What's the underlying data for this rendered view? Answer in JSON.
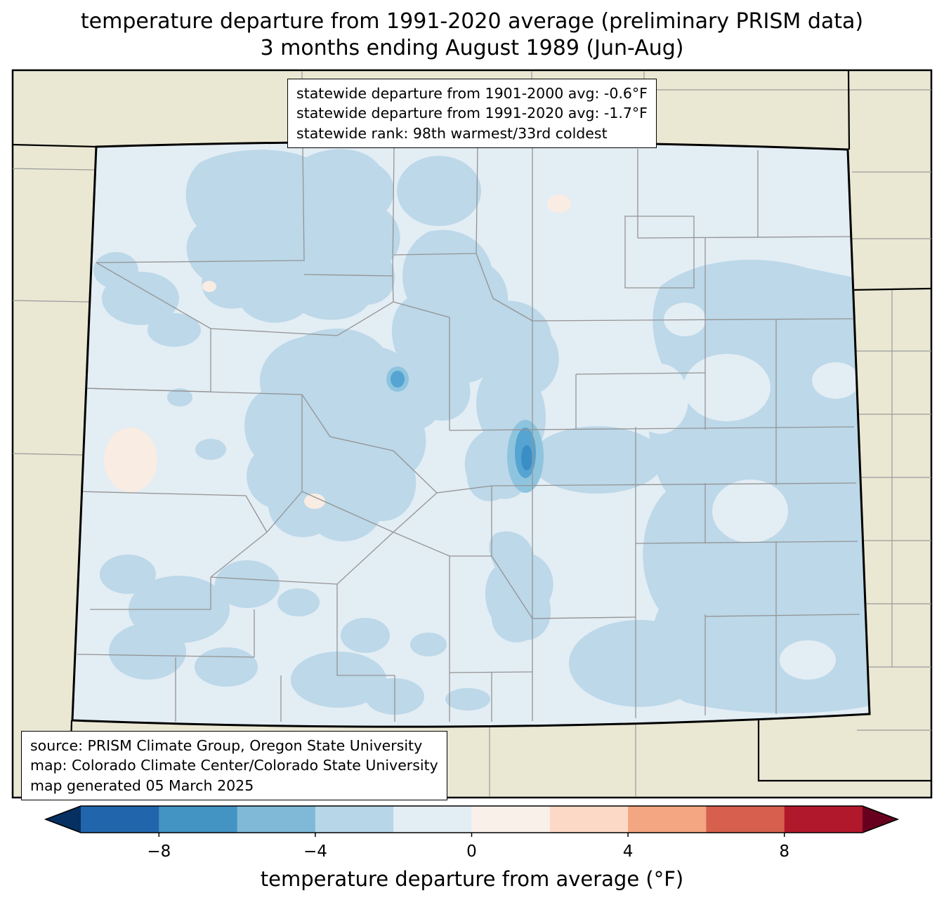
{
  "title": {
    "line1": "temperature departure from 1991-2020 average (preliminary PRISM data)",
    "line2": "3 months ending August 1989 (Jun-Aug)"
  },
  "stats_box": {
    "line1": "statewide departure from 1901-2000 avg: -0.6°F",
    "line2": "statewide departure from 1991-2020 avg: -1.7°F",
    "line3": "statewide rank: 98th warmest/33rd coldest"
  },
  "source_box": {
    "line1": "source: PRISM Climate Group, Oregon State University",
    "line2": "map: Colorado Climate Center/Colorado State University",
    "line3": "map generated 05 March 2025"
  },
  "colorbar": {
    "label": "temperature departure from average (°F)",
    "ticks": [
      "−8",
      "−4",
      "0",
      "4",
      "8"
    ],
    "tick_values": [
      -8,
      -4,
      0,
      4,
      8
    ],
    "range": [
      -10,
      10
    ],
    "segment_colors": [
      "#2166ac",
      "#4393c3",
      "#7fb9d7",
      "#b7d7e8",
      "#e3eef4",
      "#faf0ea",
      "#fbd9c6",
      "#f4a582",
      "#d6604d",
      "#b2182b"
    ],
    "left_arrow_color": "#053061",
    "right_arrow_color": "#67001f"
  },
  "map": {
    "palette": {
      "outside": "#eae8d3",
      "base": "#e3edf4",
      "light": "#bcd8e9",
      "mid": "#8ec4de",
      "dark": "#56a4d1",
      "darker": "#3a8ec6",
      "pink": "#f9ece3",
      "county_line": "#949494",
      "state_line": "#000000"
    }
  }
}
